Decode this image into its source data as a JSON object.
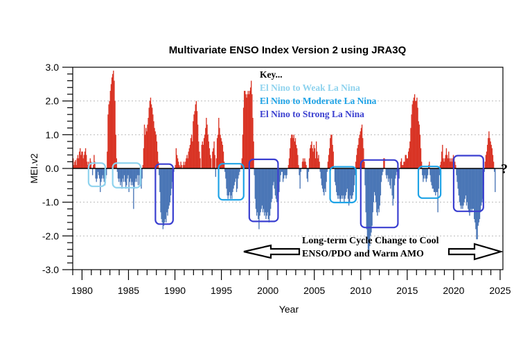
{
  "chart_data": {
    "type": "bar",
    "title": "Multivariate ENSO Index Version 2 using JRA3Q",
    "xlabel": "Year",
    "ylabel": "MEI.v2",
    "xlim": [
      1979,
      2025.3
    ],
    "ylim": [
      -3.0,
      3.0
    ],
    "x_ticks": [
      "1980",
      "1985",
      "1990",
      "1995",
      "2000",
      "2005",
      "2010",
      "2015",
      "2020",
      "2025"
    ],
    "y_ticks": [
      "3.0",
      "2.0",
      "1.0",
      "0.0",
      "-1.0",
      "-2.0",
      "-3.0"
    ],
    "grid": "dotted horizontal at major y ticks",
    "colors": {
      "positive": "#d93425",
      "negative": "#4a76b6",
      "weak": "#8fd3ee",
      "moderate": "#1fa3e6",
      "strong": "#3a3fd0"
    },
    "series": [
      {
        "frequency": "monthly",
        "start": "1979-01",
        "values": [
          0.3,
          0.1,
          0.2,
          0.25,
          0.1,
          0.3,
          0.4,
          0.3,
          0.5,
          0.6,
          0.4,
          0.5,
          0.5,
          0.3,
          0.4,
          0.5,
          0.6,
          0.4,
          0.2,
          0.1,
          0.2,
          0.1,
          0.3,
          0.2,
          0.0,
          -0.2,
          0.1,
          0.4,
          0.2,
          -0.3,
          -0.4,
          -0.3,
          -0.1,
          -0.2,
          -0.3,
          -0.7,
          -0.4,
          -0.3,
          -0.2,
          -0.3,
          -0.4,
          -0.5,
          -0.3,
          -0.2,
          0.5,
          1.6,
          1.9,
          2.0,
          2.3,
          2.5,
          2.7,
          2.8,
          2.9,
          2.6,
          2.0,
          1.0,
          0.3,
          -0.1,
          -0.3,
          -0.4,
          -0.3,
          -0.5,
          -0.4,
          -0.6,
          -0.3,
          -0.4,
          -0.2,
          -0.4,
          -0.6,
          -0.5,
          -0.3,
          -0.2,
          -0.7,
          -0.4,
          -0.3,
          -0.5,
          -0.4,
          -0.5,
          -1.2,
          -0.6,
          -0.4,
          -0.3,
          -0.4,
          -0.2,
          -0.5,
          -0.2,
          -0.5,
          -0.4,
          -0.6,
          -0.3,
          0.1,
          0.6,
          1.3,
          1.0,
          1.2,
          1.1,
          1.3,
          1.5,
          1.8,
          2.0,
          2.1,
          1.9,
          1.8,
          1.6,
          1.4,
          1.2,
          1.1,
          1.0,
          0.8,
          0.5,
          0.2,
          -0.2,
          -0.7,
          -1.3,
          -1.5,
          -1.6,
          -1.8,
          -1.7,
          -1.6,
          -1.5,
          -1.6,
          -1.3,
          -1.4,
          -1.2,
          -1.1,
          -1.0,
          -0.8,
          -0.6,
          -0.4,
          -0.3,
          -0.1,
          0.0,
          0.1,
          0.6,
          0.4,
          0.3,
          0.2,
          0.1,
          0.05,
          0.2,
          0.1,
          0.0,
          0.1,
          0.2,
          0.1,
          0.2,
          0.3,
          0.4,
          0.3,
          0.5,
          0.6,
          0.7,
          0.9,
          1.0,
          0.8,
          1.4,
          1.6,
          1.7,
          1.9,
          2.0,
          1.7,
          1.3,
          0.8,
          0.5,
          0.3,
          0.0,
          0.7,
          0.8,
          0.7,
          0.9,
          1.0,
          1.2,
          1.5,
          1.3,
          1.0,
          0.8,
          0.6,
          0.4,
          0.3,
          0.0,
          0.5,
          0.6,
          0.8,
          0.4,
          -0.25,
          0.3,
          0.9,
          1.0,
          1.5,
          1.2,
          1.0,
          0.9,
          0.8,
          0.7,
          0.5,
          0.2,
          -0.1,
          -0.3,
          -0.6,
          -0.8,
          -0.9,
          -0.8,
          -0.7,
          -0.9,
          -0.8,
          -0.9,
          -0.7,
          -0.6,
          -0.5,
          -0.4,
          -0.3,
          -0.7,
          -0.6,
          -0.3,
          -0.2,
          -0.1,
          0.0,
          0.1,
          0.3,
          1.0,
          1.8,
          2.3,
          2.3,
          2.2,
          2.1,
          2.2,
          2.3,
          2.2,
          2.3,
          2.4,
          2.6,
          2.2,
          1.5,
          0.8,
          -0.2,
          -0.9,
          -1.2,
          -1.4,
          -1.3,
          -1.5,
          -1.8,
          -1.4,
          -1.3,
          -1.2,
          -1.1,
          -1.3,
          -1.2,
          -1.4,
          -1.3,
          -1.5,
          -1.4,
          -1.3,
          -1.5,
          -1.6,
          -1.4,
          -1.2,
          -1.0,
          -0.9,
          -0.5,
          -0.4,
          -0.6,
          -0.8,
          -0.9,
          -1.0,
          -0.8,
          -0.9,
          -0.7,
          -0.4,
          -0.2,
          -0.1,
          -0.1,
          -0.4,
          -0.3,
          -0.2,
          -0.2,
          -0.3,
          -0.2,
          0.0,
          0.1,
          0.3,
          0.6,
          0.9,
          1.0,
          1.0,
          0.9,
          1.0,
          0.8,
          0.9,
          0.7,
          0.6,
          0.4,
          0.1,
          -0.2,
          -0.6,
          -0.1,
          0.0,
          0.2,
          0.3,
          0.2,
          0.3,
          0.2,
          0.1,
          -0.3,
          -0.4,
          -0.1,
          0.3,
          0.6,
          0.7,
          0.8,
          0.6,
          0.5,
          0.7,
          0.6,
          0.3,
          0.8,
          0.5,
          0.3,
          0.4,
          0.2,
          -0.1,
          -0.3,
          -0.5,
          -0.6,
          -0.7,
          -0.8,
          -0.6,
          -0.7,
          -0.4,
          -0.1,
          0.2,
          0.4,
          0.6,
          0.9,
          1.0,
          1.0,
          0.7,
          0.5,
          0.0,
          -0.4,
          -0.5,
          -0.7,
          -0.8,
          -0.9,
          -0.8,
          -0.9,
          -1.0,
          -0.9,
          -0.8,
          -0.9,
          -0.8,
          -1.0,
          -0.9,
          -0.8,
          -0.7,
          -0.6,
          -0.9,
          -1.1,
          -1.0,
          -0.8,
          -0.9,
          -0.9,
          -0.8,
          -0.7,
          -0.5,
          -0.2,
          0.2,
          0.4,
          0.6,
          0.7,
          0.9,
          1.0,
          1.1,
          1.2,
          1.3,
          0.9,
          0.6,
          0.2,
          -0.5,
          -1.3,
          -1.8,
          -2.1,
          -2.4,
          -2.5,
          -2.3,
          -2.0,
          -1.9,
          -1.7,
          -1.3,
          -1.0,
          -0.7,
          -0.8,
          -1.0,
          -1.3,
          -1.4,
          -1.2,
          -1.3,
          -1.1,
          -0.8,
          -0.4,
          -0.2,
          -0.1,
          0.3,
          0.3,
          0.0,
          -0.2,
          -0.3,
          -0.2,
          -0.4,
          -0.3,
          -0.5,
          -0.6,
          -0.3,
          -0.8,
          -1.1,
          -0.9,
          -0.5,
          -0.3,
          -0.2,
          -0.1,
          -0.2,
          -0.1,
          -0.3,
          0.0,
          0.2,
          0.3,
          0.1,
          0.1,
          0.2,
          0.2,
          0.4,
          0.4,
          0.3,
          0.3,
          0.5,
          0.6,
          0.8,
          1.2,
          1.6,
          1.9,
          2.0,
          2.1,
          2.2,
          2.0,
          2.0,
          2.1,
          1.8,
          1.4,
          1.3,
          1.0,
          0.6,
          0.2,
          -0.2,
          -0.4,
          -0.3,
          -0.2,
          -0.3,
          -0.4,
          -0.3,
          -0.2,
          0.1,
          0.2,
          -0.2,
          -0.4,
          -0.5,
          -0.6,
          -0.6,
          -0.7,
          -0.7,
          -0.8,
          -0.7,
          -0.7,
          -1.3,
          -0.6,
          -0.2,
          0.1,
          0.2,
          0.5,
          0.7,
          0.3,
          0.2,
          0.3,
          0.4,
          0.6,
          0.4,
          0.3,
          0.5,
          0.3,
          0.2,
          0.3,
          0.2,
          0.3,
          0.4,
          0.3,
          0.2,
          0.1,
          -0.2,
          -0.4,
          -0.6,
          -0.8,
          -1.0,
          -1.1,
          -1.2,
          -1.1,
          -1.2,
          -1.1,
          -1.0,
          -0.9,
          -0.8,
          -1.1,
          -1.0,
          -1.2,
          -1.3,
          -1.4,
          -1.3,
          -1.2,
          -1.3,
          -1.2,
          -1.2,
          -1.5,
          -1.6,
          -1.8,
          -2.1,
          -2.1,
          -1.7,
          -1.6,
          -1.5,
          -1.3,
          -1.1,
          -1.0,
          -0.9,
          -0.5,
          -0.1,
          0.2,
          0.4,
          0.5,
          0.7,
          0.9,
          1.1,
          0.9,
          0.8,
          0.7,
          0.6,
          0.4,
          0.2,
          -0.1,
          -0.7
        ]
      }
    ],
    "legend": {
      "heading": "Key...",
      "items": [
        {
          "label": "El Nino to Weak La Nina",
          "color": "#8fd3ee"
        },
        {
          "label": "El Nino to Moderate La Nina",
          "color": "#1fa3e6"
        },
        {
          "label": "El Nino to Strong La Nina",
          "color": "#3a3fd0"
        }
      ],
      "placement": "top-center"
    },
    "highlight_boxes": [
      {
        "category": "weak",
        "x": [
          1980.7,
          1982.5
        ],
        "y": [
          0.16,
          -0.53
        ]
      },
      {
        "category": "weak",
        "x": [
          1983.3,
          1986.3
        ],
        "y": [
          0.16,
          -0.57
        ]
      },
      {
        "category": "strong",
        "x": [
          1987.9,
          1989.8
        ],
        "y": [
          0.13,
          -1.65
        ]
      },
      {
        "category": "moderate",
        "x": [
          1994.7,
          1997.4
        ],
        "y": [
          0.14,
          -0.93
        ]
      },
      {
        "category": "strong",
        "x": [
          1998.0,
          2001.1
        ],
        "y": [
          0.27,
          -1.57
        ]
      },
      {
        "category": "moderate",
        "x": [
          2006.7,
          2009.5
        ],
        "y": [
          0.05,
          -1.01
        ]
      },
      {
        "category": "strong",
        "x": [
          2010.0,
          2014.0
        ],
        "y": [
          0.25,
          -1.75
        ]
      },
      {
        "category": "moderate",
        "x": [
          2016.2,
          2018.6
        ],
        "y": [
          0.06,
          -0.88
        ]
      },
      {
        "category": "strong",
        "x": [
          2020.0,
          2023.2
        ],
        "y": [
          0.38,
          -1.27
        ]
      }
    ],
    "annotations": {
      "line1": "Long-term Cycle Change to Cool",
      "line2": "ENSO/PDO and Warm AMO",
      "question": "?"
    }
  }
}
